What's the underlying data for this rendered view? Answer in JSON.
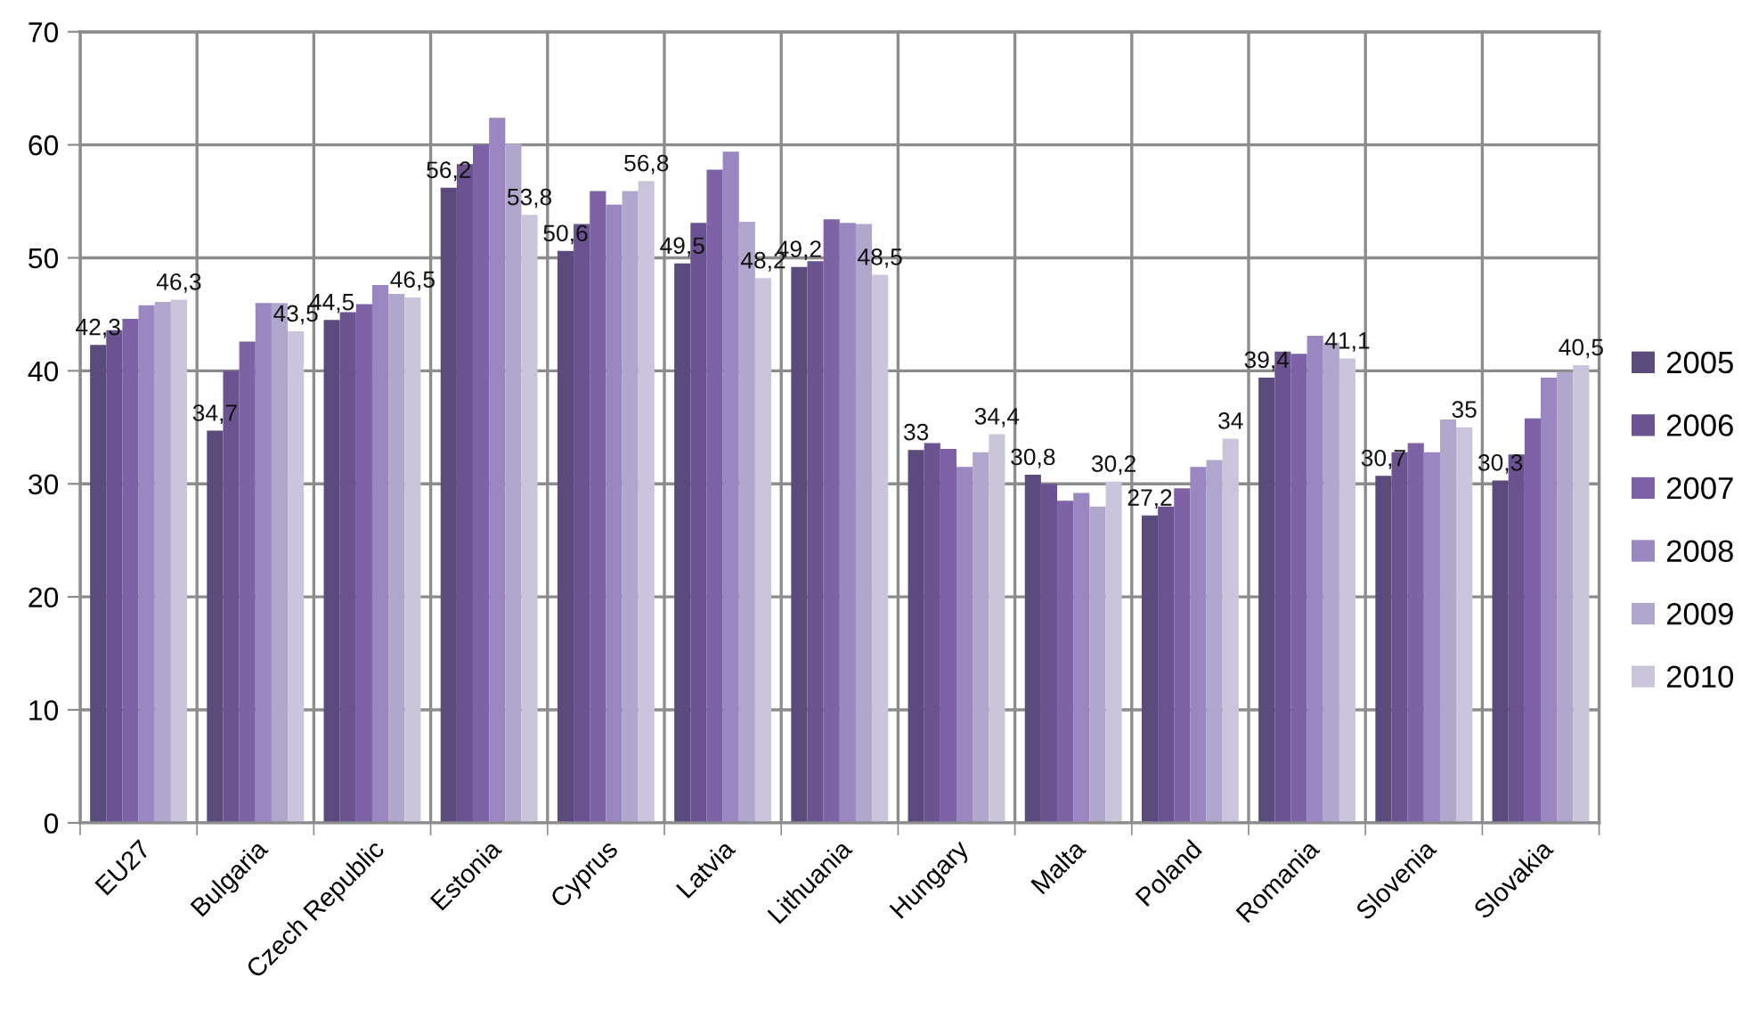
{
  "chart_data": {
    "type": "bar",
    "categories": [
      "EU27",
      "Bulgaria",
      "Czech Republic",
      "Estonia",
      "Cyprus",
      "Latvia",
      "Lithuania",
      "Hungary",
      "Malta",
      "Poland",
      "Romania",
      "Slovenia",
      "Slovakia"
    ],
    "series": [
      {
        "name": "2005",
        "color": "#5b4a7c",
        "values": [
          42.3,
          34.7,
          44.5,
          56.2,
          50.6,
          49.5,
          49.2,
          33.0,
          30.8,
          27.2,
          39.4,
          30.7,
          30.3
        ],
        "value_labels": [
          "42,3",
          "34,7",
          "44,5",
          "56,2",
          "50,6",
          "49,5",
          "49,2",
          "33",
          "30,8",
          "27,2",
          "39,4",
          "30,7",
          "30,3"
        ]
      },
      {
        "name": "2006",
        "color": "#6b5391",
        "values": [
          43.6,
          40.0,
          45.2,
          58.3,
          53.0,
          53.1,
          49.7,
          33.6,
          30.0,
          28.0,
          41.7,
          32.8,
          32.6
        ]
      },
      {
        "name": "2007",
        "color": "#7d62a6",
        "values": [
          44.6,
          42.6,
          45.9,
          60.0,
          55.9,
          57.8,
          53.4,
          33.1,
          28.5,
          29.6,
          41.5,
          33.6,
          35.8
        ]
      },
      {
        "name": "2008",
        "color": "#9a86c0",
        "values": [
          45.8,
          46.0,
          47.6,
          62.4,
          54.7,
          59.4,
          53.1,
          31.5,
          29.2,
          31.5,
          43.1,
          32.8,
          39.4
        ]
      },
      {
        "name": "2009",
        "color": "#b1a7cc",
        "values": [
          46.1,
          46.0,
          46.8,
          60.1,
          55.9,
          53.2,
          53.0,
          32.8,
          28.0,
          32.1,
          42.5,
          35.7,
          39.9
        ]
      },
      {
        "name": "2010",
        "color": "#cbc5dc",
        "values": [
          46.3,
          43.5,
          46.5,
          53.8,
          56.8,
          48.2,
          48.5,
          34.4,
          30.2,
          34.0,
          41.1,
          35.0,
          40.5
        ],
        "value_labels": [
          "46,3",
          "43,5",
          "46,5",
          "53,8",
          "56,8",
          "48,2",
          "48,5",
          "34,4",
          "30,2",
          "34",
          "41,1",
          "35",
          "40,5"
        ]
      }
    ],
    "ylim": [
      0,
      70
    ],
    "yticks": [
      0,
      10,
      20,
      30,
      40,
      50,
      60,
      70
    ],
    "grid": true,
    "legend": "right"
  }
}
